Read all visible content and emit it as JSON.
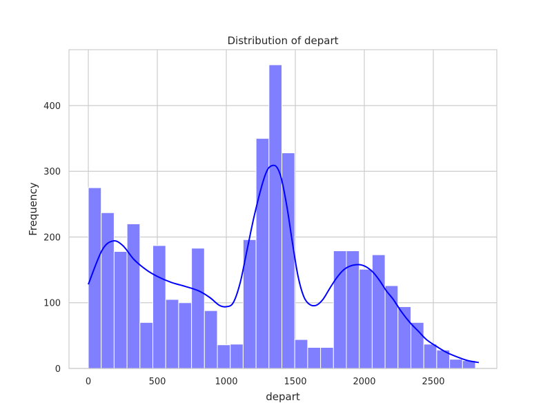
{
  "chart_data": {
    "type": "bar",
    "subtype": "histogram_with_kde",
    "title": "Distribution of depart",
    "xlabel": "depart",
    "ylabel": "Frequency",
    "xlim": [
      -140,
      2960
    ],
    "ylim": [
      0,
      485
    ],
    "xticks": [
      0,
      500,
      1000,
      1500,
      2000,
      2500
    ],
    "yticks": [
      0,
      100,
      200,
      300,
      400
    ],
    "grid": true,
    "bin_width": 93.5,
    "bin_starts": [
      0,
      93.5,
      187,
      280.5,
      374,
      467.5,
      561,
      654.5,
      748,
      841.5,
      935,
      1028.5,
      1122,
      1215.5,
      1309,
      1402.5,
      1496,
      1589.5,
      1683,
      1776.5,
      1870,
      1963.5,
      2057,
      2150.5,
      2244,
      2337.5,
      2431,
      2524.5,
      2618,
      2711.5
    ],
    "values": [
      275,
      237,
      178,
      220,
      70,
      187,
      105,
      100,
      183,
      88,
      36,
      37,
      196,
      350,
      462,
      328,
      44,
      32,
      32,
      179,
      179,
      151,
      173,
      126,
      94,
      70,
      37,
      28,
      14,
      12
    ],
    "kde": {
      "x": [
        0,
        100,
        180,
        250,
        330,
        420,
        500,
        600,
        700,
        800,
        880,
        950,
        1000,
        1050,
        1100,
        1150,
        1200,
        1260,
        1300,
        1340,
        1370,
        1400,
        1440,
        1480,
        1520,
        1560,
        1600,
        1650,
        1700,
        1750,
        1800,
        1850,
        1900,
        1960,
        2010,
        2060,
        2110,
        2160,
        2210,
        2270,
        2330,
        2390,
        2450,
        2520,
        2600,
        2680,
        2750,
        2830
      ],
      "y": [
        128,
        180,
        194,
        187,
        166,
        150,
        140,
        131,
        125,
        118,
        108,
        96,
        94,
        100,
        130,
        180,
        230,
        280,
        303,
        309,
        305,
        288,
        245,
        190,
        140,
        110,
        98,
        96,
        105,
        122,
        138,
        150,
        156,
        158,
        155,
        147,
        134,
        118,
        105,
        86,
        70,
        57,
        44,
        34,
        24,
        17,
        12,
        9
      ]
    },
    "bar_color": "#7f7fff",
    "bar_edge_color": "#ffffff",
    "line_color": "#0000ff"
  }
}
